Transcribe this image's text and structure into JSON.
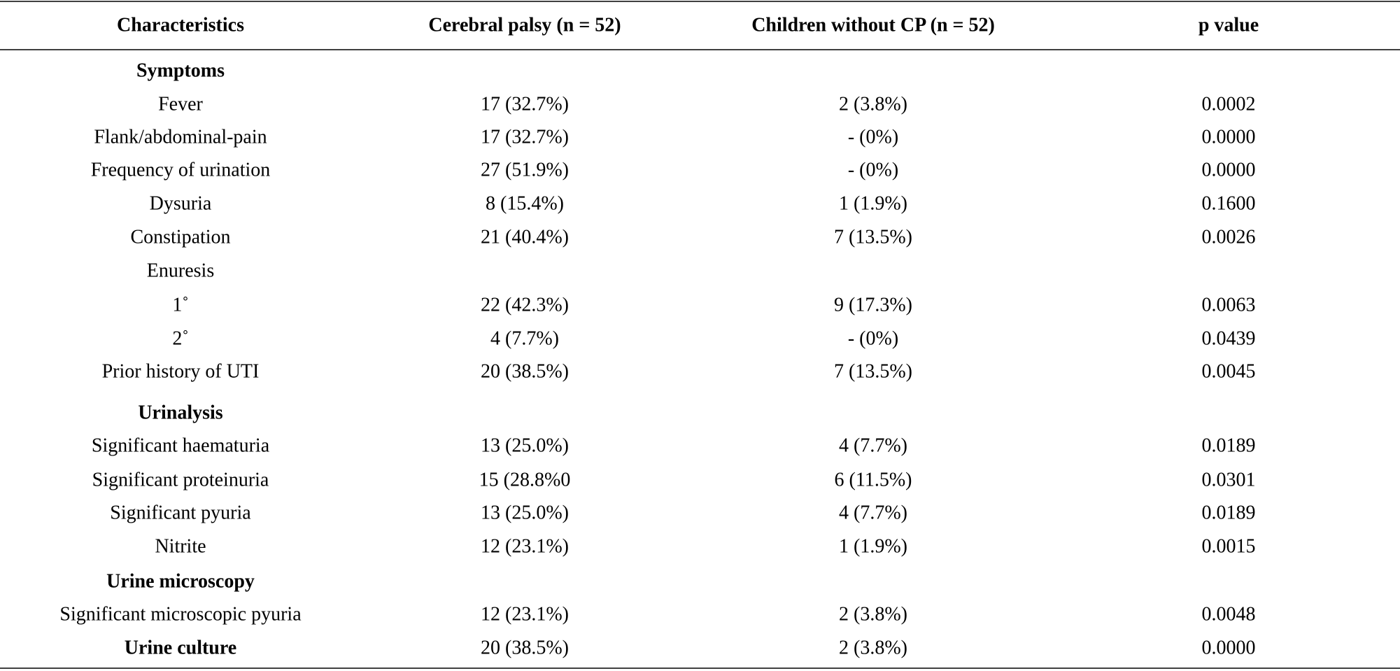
{
  "table": {
    "header": [
      "Characteristics",
      "Cerebral palsy (n = 52)",
      "Children without CP (n = 52)",
      "p value"
    ],
    "rows": [
      {
        "cells": [
          "Symptoms"
        ],
        "bold": true
      },
      {
        "cells": [
          "Fever",
          "17 (32.7%)",
          "2 (3.8%)",
          "0.0002"
        ]
      },
      {
        "cells": [
          "Flank/abdominal-pain",
          "17 (32.7%)",
          "- (0%)",
          "0.0000"
        ]
      },
      {
        "cells": [
          "Frequency of urination",
          "27 (51.9%)",
          "- (0%)",
          "0.0000"
        ]
      },
      {
        "cells": [
          "Dysuria",
          "8 (15.4%)",
          "1 (1.9%)",
          "0.1600"
        ]
      },
      {
        "cells": [
          "Constipation",
          "21 (40.4%)",
          "7 (13.5%)",
          "0.0026"
        ]
      },
      {
        "cells": [
          "Enuresis"
        ]
      },
      {
        "cells": [
          "1˚",
          "22 (42.3%)",
          "9 (17.3%)",
          "0.0063"
        ]
      },
      {
        "cells": [
          "2˚",
          "4 (7.7%)",
          "- (0%)",
          "0.0439"
        ]
      },
      {
        "cells": [
          "Prior history of UTI",
          "20 (38.5%)",
          "7 (13.5%)",
          "0.0045"
        ]
      },
      {
        "cells": [
          "Urinalysis"
        ],
        "bold": true
      },
      {
        "cells": [
          "Significant haematuria",
          "13 (25.0%)",
          "4 (7.7%)",
          "0.0189"
        ]
      },
      {
        "cells": [
          "Significant proteinuria",
          "15 (28.8%0",
          "6 (11.5%)",
          "0.0301"
        ]
      },
      {
        "cells": [
          "Significant pyuria",
          "13 (25.0%)",
          "4 (7.7%)",
          "0.0189"
        ]
      },
      {
        "cells": [
          "Nitrite",
          "12 (23.1%)",
          "1 (1.9%)",
          "0.0015"
        ]
      },
      {
        "cells": [
          "Urine microscopy"
        ],
        "bold": true
      },
      {
        "cells": [
          "Significant microscopic pyuria",
          "12 (23.1%)",
          "2 (3.8%)",
          "0.0048"
        ]
      },
      {
        "cells": [
          "Urine culture",
          "20 (38.5%)",
          "2 (3.8%)",
          "0.0000"
        ],
        "bold": true
      }
    ]
  }
}
